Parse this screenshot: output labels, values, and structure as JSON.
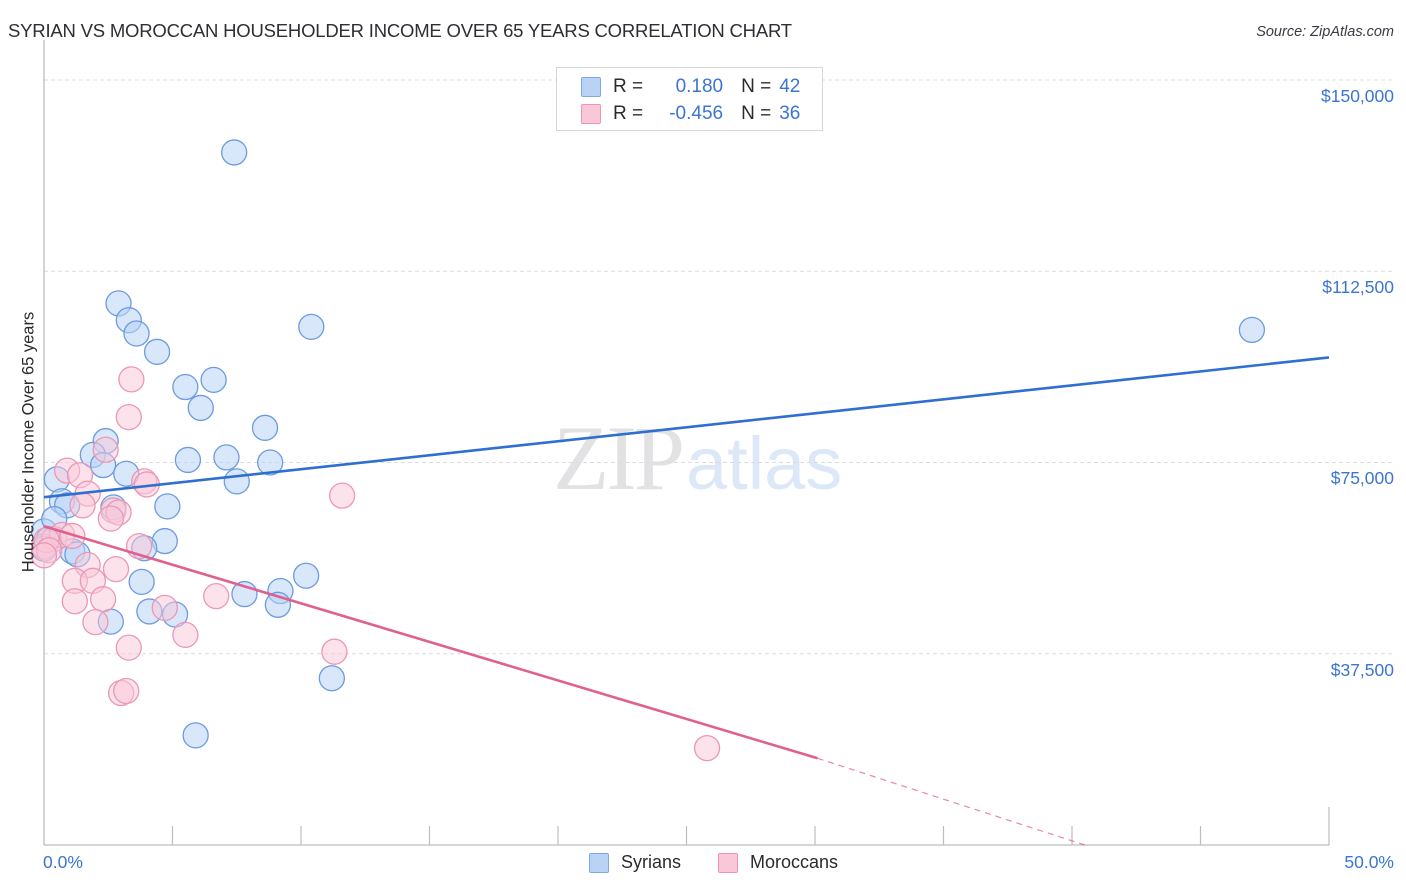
{
  "header": {
    "title": "SYRIAN VS MOROCCAN HOUSEHOLDER INCOME OVER 65 YEARS CORRELATION CHART",
    "source": "Source: ZipAtlas.com"
  },
  "legend": {
    "rows": [
      {
        "r_label": "R =",
        "r_value": "0.180",
        "n_label": "N =",
        "n_value": "42",
        "color": "#b8d3f5",
        "border": "#7fa8e6"
      },
      {
        "r_label": "R =",
        "r_value": "-0.456",
        "n_label": "N =",
        "n_value": "36",
        "color": "#f9c8d8",
        "border": "#ee94b2"
      }
    ]
  },
  "bottom_legend": {
    "items": [
      {
        "label": "Syrians",
        "color": "#b8d3f5",
        "border": "#7fa8e6"
      },
      {
        "label": "Moroccans",
        "color": "#f9c8d8",
        "border": "#ee94b2"
      }
    ]
  },
  "watermark": {
    "zip": "ZIP",
    "atlas": "atlas"
  },
  "axes": {
    "y_title": "Householder Income Over 65 years",
    "y_ticks": [
      "$150,000",
      "$112,500",
      "$75,000",
      "$37,500"
    ],
    "x_ticks": [
      "0.0%",
      "50.0%"
    ]
  },
  "chart_data": {
    "type": "scatter",
    "title": "SYRIAN VS MOROCCAN HOUSEHOLDER INCOME OVER 65 YEARS CORRELATION CHART",
    "xlabel": "",
    "ylabel": "Householder Income Over 65 years",
    "xlim": [
      0,
      50
    ],
    "ylim": [
      0,
      150000
    ],
    "x_ticks": [
      "0.0%",
      "50.0%"
    ],
    "y_ticks": [
      37500,
      75000,
      112500,
      150000
    ],
    "grid": "horizontal dashed",
    "legend_position": "top-center (stats) and bottom-center (series)",
    "colors": {
      "Syrians": "#3b75d1",
      "Moroccans": "#e0608f"
    },
    "series": [
      {
        "name": "Syrians",
        "R": 0.18,
        "N": 42,
        "trend": {
          "x": [
            0,
            50
          ],
          "y": [
            68200,
            95600
          ]
        },
        "points": [
          [
            7.4,
            135800
          ],
          [
            2.9,
            106200
          ],
          [
            3.3,
            102900
          ],
          [
            3.6,
            100300
          ],
          [
            4.4,
            96700
          ],
          [
            10.4,
            101600
          ],
          [
            5.5,
            89800
          ],
          [
            6.6,
            91200
          ],
          [
            6.1,
            85700
          ],
          [
            47.0,
            101000
          ],
          [
            8.6,
            81800
          ],
          [
            2.4,
            79200
          ],
          [
            1.9,
            76500
          ],
          [
            2.3,
            74500
          ],
          [
            3.2,
            72800
          ],
          [
            5.6,
            75500
          ],
          [
            7.1,
            76000
          ],
          [
            8.8,
            75000
          ],
          [
            7.5,
            71300
          ],
          [
            0.5,
            71700
          ],
          [
            0.7,
            67400
          ],
          [
            0.9,
            66600
          ],
          [
            2.7,
            66200
          ],
          [
            4.8,
            66400
          ],
          [
            0.0,
            61500
          ],
          [
            0.2,
            60000
          ],
          [
            4.7,
            59600
          ],
          [
            1.1,
            57600
          ],
          [
            1.3,
            57000
          ],
          [
            3.9,
            58200
          ],
          [
            10.2,
            52800
          ],
          [
            3.8,
            51600
          ],
          [
            7.8,
            49200
          ],
          [
            9.2,
            49800
          ],
          [
            9.1,
            47100
          ],
          [
            5.1,
            45200
          ],
          [
            2.6,
            43800
          ],
          [
            4.1,
            45800
          ],
          [
            11.2,
            32700
          ],
          [
            5.9,
            21500
          ],
          [
            0.0,
            58100
          ],
          [
            0.4,
            63900
          ]
        ]
      },
      {
        "name": "Moroccans",
        "R": -0.456,
        "N": 36,
        "trend": {
          "x": [
            0,
            30.1
          ],
          "y": [
            62500,
            17000
          ],
          "dashed_extension_to": [
            40.5,
            0
          ]
        },
        "points": [
          [
            3.4,
            91300
          ],
          [
            3.3,
            83900
          ],
          [
            2.4,
            77500
          ],
          [
            0.9,
            73400
          ],
          [
            1.4,
            72500
          ],
          [
            3.9,
            71300
          ],
          [
            4.0,
            70700
          ],
          [
            11.6,
            68500
          ],
          [
            1.7,
            68900
          ],
          [
            1.5,
            66600
          ],
          [
            2.7,
            65600
          ],
          [
            2.9,
            65200
          ],
          [
            2.6,
            64000
          ],
          [
            0.0,
            58500
          ],
          [
            0.4,
            60000
          ],
          [
            0.7,
            60800
          ],
          [
            1.1,
            60600
          ],
          [
            0.1,
            59800
          ],
          [
            0.2,
            57800
          ],
          [
            0.0,
            56800
          ],
          [
            3.7,
            58600
          ],
          [
            1.7,
            54900
          ],
          [
            2.8,
            54100
          ],
          [
            1.2,
            51800
          ],
          [
            1.9,
            51800
          ],
          [
            4.7,
            46500
          ],
          [
            6.7,
            48800
          ],
          [
            2.3,
            48200
          ],
          [
            1.2,
            47800
          ],
          [
            2.0,
            43700
          ],
          [
            5.5,
            41200
          ],
          [
            3.3,
            38700
          ],
          [
            11.3,
            37900
          ],
          [
            3.0,
            29800
          ],
          [
            3.2,
            30200
          ],
          [
            25.8,
            19000
          ]
        ]
      }
    ]
  }
}
